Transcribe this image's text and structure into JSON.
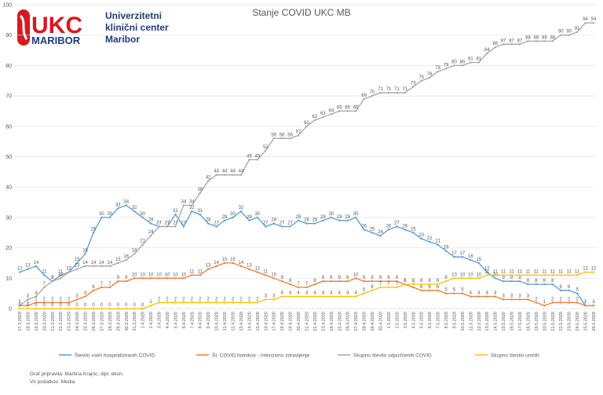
{
  "logo": {
    "mark": "UKC",
    "city": "MARIBOR",
    "lines": [
      "Univerzitetni",
      "klinični center",
      "Maribor"
    ]
  },
  "chart_data": {
    "type": "line",
    "title": "Stanje COVID UKC MB",
    "categories": [
      "17.3.2020",
      "18.3.2020",
      "19.3.2020",
      "20.3.2020",
      "21.3.2020",
      "22.3.2020",
      "23.3.2020",
      "24.3.2020",
      "25.3.2020",
      "26.3.2020",
      "27.3.2020",
      "28.3.2020",
      "29.3.2020",
      "30.3.2020",
      "31.3.2020",
      "1.4.2020",
      "2.4.2020",
      "3.4.2020",
      "4.4.2020",
      "5.4.2020",
      "6.4.2020",
      "7.4.2020",
      "8.4.2020",
      "9.4.2020",
      "10.4.2020",
      "11.4.2020",
      "12.4.2020",
      "13.4.2020",
      "14.4.2020",
      "15.4.2020",
      "16.4.2020",
      "17.4.2020",
      "18.4.2020",
      "19.4.2020",
      "20.4.2020",
      "21.4.2020",
      "22.4.2020",
      "23.4.2020",
      "24.4.2020",
      "25.4.2020",
      "26.4.2020",
      "27.4.2020",
      "28.4.2020",
      "29.4.2020",
      "30.4.2020",
      "1.5.2020",
      "2.5.2020",
      "3.5.2020",
      "4.5.2020",
      "5.5.2020",
      "6.5.2020",
      "7.5.2020",
      "8.5.2020",
      "9.5.2020",
      "10.5.2020",
      "11.5.2020",
      "12.5.2020",
      "13.5.2020",
      "14.5.2020",
      "15.5.2020",
      "16.5.2020",
      "17.5.2020",
      "18.5.2020",
      "19.5.2020",
      "20.5.2020",
      "21.5.2020",
      "22.5.2020",
      "23.5.2020",
      "24.5.2020",
      "25.5.2020",
      "26.5.2020"
    ],
    "series": [
      {
        "name": "Število vseh hospitaliziranih COVID",
        "color": "#5b9bd5",
        "values": [
          12,
          13,
          14,
          11,
          9,
          11,
          12,
          15,
          18,
          25,
          30,
          30,
          33,
          34,
          32,
          30,
          28,
          27,
          27,
          31,
          27,
          32,
          31,
          28,
          27,
          29,
          30,
          32,
          29,
          30,
          27,
          28,
          27,
          27,
          29,
          28,
          28,
          29,
          30,
          29,
          29,
          30,
          26,
          25,
          24,
          26,
          27,
          26,
          25,
          23,
          22,
          21,
          19,
          17,
          17,
          16,
          15,
          12,
          10,
          9,
          9,
          9,
          8,
          8,
          8,
          8,
          6,
          6,
          5,
          1,
          1
        ]
      },
      {
        "name": "Št. COVID bolnikov - Intenzivno zdravljenje",
        "color": "#ed7d31",
        "values": [
          1,
          1,
          2,
          2,
          2,
          2,
          2,
          3,
          4,
          6,
          7,
          7,
          9,
          9,
          10,
          10,
          10,
          10,
          10,
          10,
          10,
          11,
          11,
          13,
          14,
          15,
          15,
          14,
          13,
          12,
          11,
          10,
          9,
          8,
          7,
          7,
          8,
          9,
          9,
          9,
          9,
          10,
          9,
          9,
          9,
          9,
          9,
          8,
          7,
          6,
          6,
          6,
          5,
          5,
          5,
          4,
          4,
          4,
          4,
          3,
          3,
          3,
          3,
          2,
          1,
          2,
          2,
          2,
          2,
          1,
          1
        ]
      },
      {
        "name": "Skupno število odpuščenih COVID",
        "color": "#a5a5a5",
        "values": [
          1,
          3,
          4,
          7,
          9,
          10,
          12,
          13,
          14,
          14,
          14,
          14,
          15,
          16,
          18,
          21,
          24,
          27,
          27,
          27,
          34,
          34,
          38,
          42,
          44,
          44,
          44,
          44,
          49,
          49,
          52,
          56,
          56,
          56,
          57,
          60,
          62,
          63,
          64,
          65,
          65,
          65,
          69,
          70,
          71,
          71,
          71,
          71,
          73,
          75,
          76,
          78,
          79,
          80,
          80,
          81,
          81,
          84,
          86,
          87,
          87,
          87,
          88,
          88,
          88,
          88,
          90,
          90,
          91,
          94,
          94
        ]
      },
      {
        "name": "Skupno število umrlih",
        "color": "#ffc000",
        "values": [
          0,
          0,
          0,
          0,
          0,
          0,
          0,
          0,
          0,
          0,
          0,
          0,
          0,
          0,
          0,
          0,
          1,
          2,
          2,
          2,
          2,
          2,
          2,
          2,
          2,
          2,
          2,
          2,
          2,
          2,
          3,
          3,
          4,
          4,
          4,
          4,
          4,
          4,
          4,
          4,
          4,
          4,
          5,
          6,
          7,
          7,
          7,
          8,
          8,
          8,
          8,
          8,
          9,
          10,
          10,
          10,
          10,
          11,
          11,
          11,
          11,
          11,
          11,
          11,
          11,
          11,
          11,
          11,
          11,
          12,
          12
        ]
      }
    ],
    "ylim": [
      0,
      100
    ],
    "yticks": [
      0,
      10,
      20,
      30,
      40,
      50,
      60,
      70,
      80,
      90,
      100
    ],
    "grid": true,
    "legend": "bottom",
    "notes": [
      "Graf pripravila: Martina Krajnc, dipl. ekon.",
      "Vir podatkov: Media"
    ]
  }
}
